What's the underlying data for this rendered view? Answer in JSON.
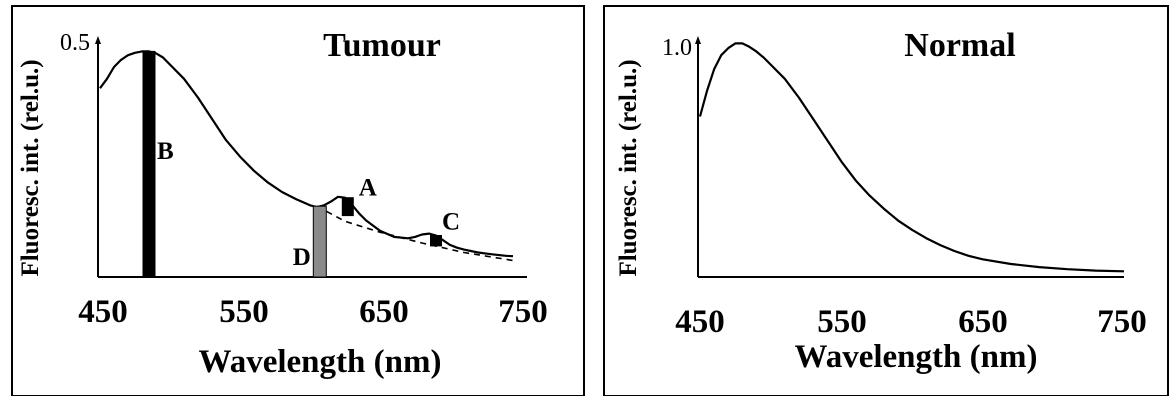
{
  "chart_data": [
    {
      "type": "line",
      "title": "Tumour",
      "xlabel": "Wavelength (nm)",
      "ylabel": "Fluoresc. int. (rel.u.)",
      "xlim": [
        450,
        750
      ],
      "ylim": [
        0,
        0.5
      ],
      "x_ticks": [
        "450",
        "550",
        "650",
        "750"
      ],
      "y_max_label": "0.5",
      "series": [
        {
          "style": "solid",
          "x": [
            450,
            455,
            460,
            465,
            470,
            475,
            480,
            485,
            490,
            495,
            500,
            510,
            520,
            530,
            540,
            550,
            560,
            570,
            580,
            590,
            600,
            605,
            610,
            615,
            620,
            625,
            630,
            635,
            640,
            650,
            660,
            670,
            675,
            680,
            685,
            690,
            695,
            700,
            705,
            710,
            720,
            730,
            740,
            745
          ],
          "y": [
            0.4,
            0.42,
            0.445,
            0.46,
            0.47,
            0.475,
            0.478,
            0.478,
            0.474,
            0.465,
            0.45,
            0.42,
            0.38,
            0.335,
            0.29,
            0.255,
            0.225,
            0.2,
            0.18,
            0.165,
            0.152,
            0.148,
            0.152,
            0.16,
            0.17,
            0.168,
            0.153,
            0.135,
            0.12,
            0.098,
            0.085,
            0.082,
            0.085,
            0.09,
            0.092,
            0.088,
            0.078,
            0.068,
            0.062,
            0.058,
            0.052,
            0.048,
            0.045,
            0.044
          ]
        },
        {
          "style": "dashed",
          "x": [
            605,
            625,
            650,
            680,
            710,
            745
          ],
          "y": [
            0.15,
            0.118,
            0.095,
            0.072,
            0.052,
            0.035
          ]
        }
      ],
      "markers": [
        {
          "label": "B",
          "x": 485,
          "y0": 0.0,
          "y1": 0.478,
          "fill": "solid"
        },
        {
          "label": "A",
          "x": 627,
          "y0": 0.13,
          "y1": 0.168,
          "fill": "solid"
        },
        {
          "label": "C",
          "x": 690,
          "y0": 0.066,
          "y1": 0.088,
          "fill": "solid"
        },
        {
          "label": "D",
          "x": 607,
          "y0": 0.0,
          "y1": 0.15,
          "fill": "stippled"
        }
      ]
    },
    {
      "type": "line",
      "title": "Normal",
      "xlabel": "Wavelength (nm)",
      "ylabel": "Fluoresc. int. (rel.u.)",
      "xlim": [
        450,
        750
      ],
      "ylim": [
        0,
        1.0
      ],
      "x_ticks": [
        "450",
        "550",
        "650",
        "750"
      ],
      "y_max_label": "1.0",
      "series": [
        {
          "style": "solid",
          "x": [
            450,
            455,
            460,
            465,
            470,
            475,
            480,
            485,
            490,
            495,
            500,
            510,
            520,
            530,
            540,
            550,
            560,
            570,
            580,
            590,
            600,
            610,
            620,
            630,
            640,
            650,
            670,
            690,
            710,
            730,
            750
          ],
          "y": [
            0.68,
            0.79,
            0.88,
            0.94,
            0.97,
            0.99,
            0.99,
            0.975,
            0.955,
            0.93,
            0.9,
            0.84,
            0.76,
            0.67,
            0.58,
            0.49,
            0.41,
            0.345,
            0.29,
            0.24,
            0.2,
            0.165,
            0.135,
            0.11,
            0.09,
            0.075,
            0.055,
            0.042,
            0.033,
            0.027,
            0.024
          ]
        }
      ]
    }
  ]
}
